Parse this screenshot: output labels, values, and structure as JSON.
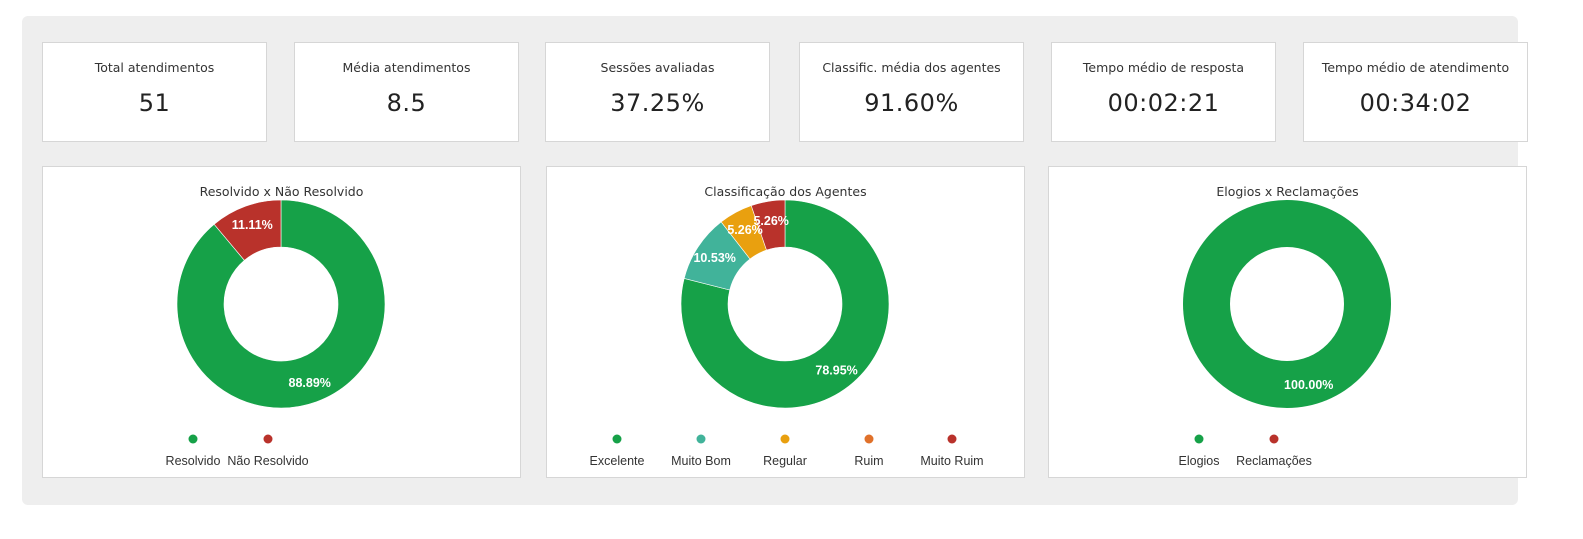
{
  "kpis": [
    {
      "label": "Total atendimentos",
      "value": "51"
    },
    {
      "label": "Média atendimentos",
      "value": "8.5"
    },
    {
      "label": "Sessões avaliadas",
      "value": "37.25%"
    },
    {
      "label": "Classific. média dos agentes",
      "value": "91.60%"
    },
    {
      "label": "Tempo médio de resposta",
      "value": "00:02:21"
    },
    {
      "label": "Tempo médio de atendimento",
      "value": "00:34:02"
    }
  ],
  "chart_data": [
    {
      "type": "pie",
      "title": "Resolvido x Não Resolvido",
      "donut": true,
      "legend": "bottom",
      "slices": [
        {
          "name": "Resolvido",
          "value": 88.89,
          "label": "88.89%",
          "color": "#16a148"
        },
        {
          "name": "Não Resolvido",
          "value": 11.11,
          "label": "11.11%",
          "color": "#b9322b"
        }
      ]
    },
    {
      "type": "pie",
      "title": "Classificação dos Agentes",
      "donut": true,
      "legend": "bottom",
      "slices": [
        {
          "name": "Excelente",
          "value": 78.95,
          "label": "78.95%",
          "color": "#16a148"
        },
        {
          "name": "Muito Bom",
          "value": 10.53,
          "label": "10.53%",
          "color": "#41b39a"
        },
        {
          "name": "Regular",
          "value": 5.26,
          "label": "5.26%",
          "color": "#e9a00f"
        },
        {
          "name": "Ruim",
          "value": 0,
          "label": "",
          "color": "#e0712a"
        },
        {
          "name": "Muito Ruim",
          "value": 5.26,
          "label": "5.26%",
          "color": "#b9322b"
        }
      ]
    },
    {
      "type": "pie",
      "title": "Elogios x Reclamações",
      "donut": true,
      "legend": "bottom",
      "slices": [
        {
          "name": "Elogios",
          "value": 100,
          "label": "100.00%",
          "color": "#16a148"
        },
        {
          "name": "Reclamações",
          "value": 0,
          "label": "",
          "color": "#b9322b"
        }
      ]
    }
  ]
}
